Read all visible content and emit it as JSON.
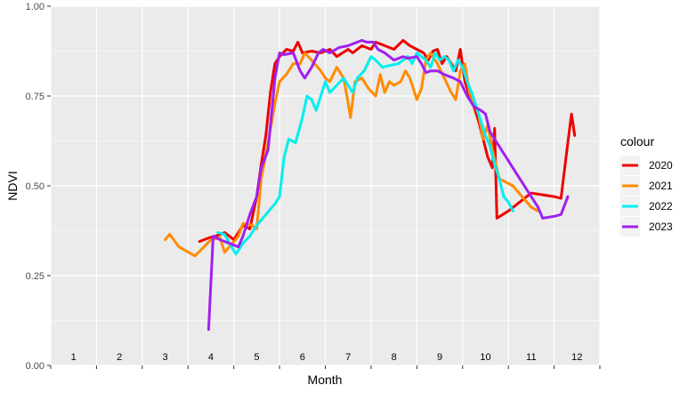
{
  "chart_data": {
    "type": "line",
    "title": "",
    "xlabel": "Month",
    "ylabel": "NDVI",
    "xlim": [
      0.5,
      12.5
    ],
    "ylim": [
      0,
      1
    ],
    "y_ticks": [
      0,
      0.25,
      0.5,
      0.75,
      1
    ],
    "y_tick_labels": [
      "0.00",
      "0.25",
      "0.50",
      "0.75",
      "1.00"
    ],
    "month_labels": [
      "1",
      "2",
      "3",
      "4",
      "5",
      "6",
      "7",
      "8",
      "9",
      "10",
      "11",
      "12"
    ],
    "month_label_positions": [
      1,
      2,
      3,
      4,
      5,
      6,
      7,
      8,
      9,
      10,
      11,
      12
    ],
    "month_label_y": 0.015,
    "x_ticks": [
      0.5,
      1.5,
      2.5,
      3.5,
      4.5,
      5.5,
      6.5,
      7.5,
      8.5,
      9.5,
      10.5,
      11.5,
      12.5
    ],
    "grid": true,
    "legend": {
      "title": "colour",
      "position": "right"
    },
    "series": [
      {
        "name": "2020",
        "color": "#ee0000",
        "points": [
          [
            3.75,
            0.345
          ],
          [
            3.95,
            0.355
          ],
          [
            4.1,
            0.36
          ],
          [
            4.3,
            0.37
          ],
          [
            4.5,
            0.35
          ],
          [
            4.7,
            0.39
          ],
          [
            4.85,
            0.38
          ],
          [
            5.0,
            0.47
          ],
          [
            5.1,
            0.56
          ],
          [
            5.2,
            0.64
          ],
          [
            5.3,
            0.76
          ],
          [
            5.4,
            0.84
          ],
          [
            5.5,
            0.86
          ],
          [
            5.65,
            0.88
          ],
          [
            5.8,
            0.875
          ],
          [
            5.9,
            0.9
          ],
          [
            6.0,
            0.87
          ],
          [
            6.2,
            0.875
          ],
          [
            6.4,
            0.87
          ],
          [
            6.6,
            0.88
          ],
          [
            6.75,
            0.86
          ],
          [
            7.0,
            0.88
          ],
          [
            7.1,
            0.87
          ],
          [
            7.3,
            0.89
          ],
          [
            7.5,
            0.88
          ],
          [
            7.6,
            0.9
          ],
          [
            7.8,
            0.89
          ],
          [
            8.0,
            0.88
          ],
          [
            8.2,
            0.905
          ],
          [
            8.35,
            0.89
          ],
          [
            8.5,
            0.88
          ],
          [
            8.65,
            0.87
          ],
          [
            8.75,
            0.85
          ],
          [
            8.85,
            0.875
          ],
          [
            8.95,
            0.88
          ],
          [
            9.05,
            0.84
          ],
          [
            9.15,
            0.86
          ],
          [
            9.25,
            0.84
          ],
          [
            9.35,
            0.82
          ],
          [
            9.45,
            0.88
          ],
          [
            9.55,
            0.79
          ],
          [
            9.65,
            0.75
          ],
          [
            9.75,
            0.72
          ],
          [
            9.85,
            0.68
          ],
          [
            9.95,
            0.63
          ],
          [
            10.05,
            0.58
          ],
          [
            10.15,
            0.55
          ],
          [
            10.2,
            0.66
          ],
          [
            10.25,
            0.41
          ],
          [
            10.5,
            0.43
          ],
          [
            10.8,
            0.46
          ],
          [
            11.0,
            0.48
          ],
          [
            11.5,
            0.47
          ],
          [
            11.65,
            0.465
          ],
          [
            11.8,
            0.62
          ],
          [
            11.88,
            0.7
          ],
          [
            11.95,
            0.64
          ]
        ]
      },
      {
        "name": "2021",
        "color": "#ff8c00",
        "points": [
          [
            3.0,
            0.35
          ],
          [
            3.1,
            0.365
          ],
          [
            3.3,
            0.33
          ],
          [
            3.65,
            0.305
          ],
          [
            3.85,
            0.33
          ],
          [
            4.0,
            0.35
          ],
          [
            4.2,
            0.355
          ],
          [
            4.3,
            0.315
          ],
          [
            4.5,
            0.345
          ],
          [
            4.6,
            0.36
          ],
          [
            4.7,
            0.395
          ],
          [
            4.9,
            0.39
          ],
          [
            5.0,
            0.38
          ],
          [
            5.1,
            0.52
          ],
          [
            5.25,
            0.62
          ],
          [
            5.4,
            0.73
          ],
          [
            5.5,
            0.79
          ],
          [
            5.65,
            0.81
          ],
          [
            5.8,
            0.84
          ],
          [
            5.95,
            0.84
          ],
          [
            6.05,
            0.87
          ],
          [
            6.2,
            0.85
          ],
          [
            6.4,
            0.82
          ],
          [
            6.5,
            0.8
          ],
          [
            6.6,
            0.79
          ],
          [
            6.75,
            0.83
          ],
          [
            6.9,
            0.8
          ],
          [
            7.0,
            0.73
          ],
          [
            7.05,
            0.69
          ],
          [
            7.15,
            0.79
          ],
          [
            7.3,
            0.8
          ],
          [
            7.45,
            0.77
          ],
          [
            7.6,
            0.75
          ],
          [
            7.7,
            0.81
          ],
          [
            7.8,
            0.76
          ],
          [
            7.9,
            0.79
          ],
          [
            8.0,
            0.78
          ],
          [
            8.15,
            0.79
          ],
          [
            8.25,
            0.82
          ],
          [
            8.35,
            0.8
          ],
          [
            8.5,
            0.74
          ],
          [
            8.6,
            0.77
          ],
          [
            8.7,
            0.85
          ],
          [
            8.8,
            0.87
          ],
          [
            8.95,
            0.84
          ],
          [
            9.1,
            0.8
          ],
          [
            9.25,
            0.76
          ],
          [
            9.35,
            0.74
          ],
          [
            9.45,
            0.82
          ],
          [
            9.55,
            0.84
          ],
          [
            9.65,
            0.76
          ],
          [
            9.75,
            0.73
          ],
          [
            9.85,
            0.7
          ],
          [
            9.95,
            0.63
          ],
          [
            10.05,
            0.67
          ],
          [
            10.15,
            0.6
          ],
          [
            10.3,
            0.52
          ],
          [
            10.6,
            0.5
          ],
          [
            10.8,
            0.47
          ],
          [
            11.0,
            0.44
          ],
          [
            11.15,
            0.43
          ]
        ]
      },
      {
        "name": "2022",
        "color": "#00eeee",
        "points": [
          [
            4.15,
            0.37
          ],
          [
            4.3,
            0.365
          ],
          [
            4.45,
            0.33
          ],
          [
            4.55,
            0.31
          ],
          [
            4.7,
            0.34
          ],
          [
            4.85,
            0.36
          ],
          [
            5.0,
            0.39
          ],
          [
            5.2,
            0.42
          ],
          [
            5.4,
            0.45
          ],
          [
            5.5,
            0.47
          ],
          [
            5.6,
            0.58
          ],
          [
            5.7,
            0.63
          ],
          [
            5.85,
            0.62
          ],
          [
            6.0,
            0.69
          ],
          [
            6.1,
            0.75
          ],
          [
            6.2,
            0.74
          ],
          [
            6.3,
            0.71
          ],
          [
            6.4,
            0.75
          ],
          [
            6.5,
            0.79
          ],
          [
            6.6,
            0.76
          ],
          [
            6.75,
            0.78
          ],
          [
            6.9,
            0.8
          ],
          [
            7.0,
            0.78
          ],
          [
            7.1,
            0.76
          ],
          [
            7.2,
            0.8
          ],
          [
            7.35,
            0.82
          ],
          [
            7.5,
            0.86
          ],
          [
            7.6,
            0.85
          ],
          [
            7.75,
            0.83
          ],
          [
            7.9,
            0.835
          ],
          [
            8.1,
            0.84
          ],
          [
            8.3,
            0.86
          ],
          [
            8.4,
            0.84
          ],
          [
            8.5,
            0.87
          ],
          [
            8.6,
            0.86
          ],
          [
            8.7,
            0.85
          ],
          [
            8.8,
            0.83
          ],
          [
            8.9,
            0.87
          ],
          [
            9.0,
            0.85
          ],
          [
            9.1,
            0.86
          ],
          [
            9.2,
            0.85
          ],
          [
            9.3,
            0.82
          ],
          [
            9.4,
            0.85
          ],
          [
            9.5,
            0.83
          ],
          [
            9.6,
            0.79
          ],
          [
            9.7,
            0.76
          ],
          [
            9.8,
            0.72
          ],
          [
            9.9,
            0.68
          ],
          [
            10.0,
            0.64
          ],
          [
            10.1,
            0.61
          ],
          [
            10.2,
            0.56
          ],
          [
            10.3,
            0.52
          ],
          [
            10.4,
            0.47
          ],
          [
            10.5,
            0.455
          ],
          [
            10.6,
            0.43
          ]
        ]
      },
      {
        "name": "2023",
        "color": "#a020f0",
        "points": [
          [
            3.95,
            0.1
          ],
          [
            4.05,
            0.36
          ],
          [
            4.2,
            0.35
          ],
          [
            4.4,
            0.34
          ],
          [
            4.6,
            0.33
          ],
          [
            4.7,
            0.36
          ],
          [
            4.85,
            0.42
          ],
          [
            5.0,
            0.47
          ],
          [
            5.1,
            0.55
          ],
          [
            5.25,
            0.6
          ],
          [
            5.4,
            0.8
          ],
          [
            5.5,
            0.87
          ],
          [
            5.6,
            0.865
          ],
          [
            5.8,
            0.87
          ],
          [
            5.95,
            0.82
          ],
          [
            6.05,
            0.8
          ],
          [
            6.2,
            0.83
          ],
          [
            6.35,
            0.87
          ],
          [
            6.45,
            0.88
          ],
          [
            6.6,
            0.87
          ],
          [
            6.8,
            0.885
          ],
          [
            7.0,
            0.89
          ],
          [
            7.2,
            0.9
          ],
          [
            7.3,
            0.905
          ],
          [
            7.4,
            0.9
          ],
          [
            7.55,
            0.9
          ],
          [
            7.65,
            0.88
          ],
          [
            7.8,
            0.87
          ],
          [
            8.0,
            0.85
          ],
          [
            8.2,
            0.86
          ],
          [
            8.3,
            0.855
          ],
          [
            8.5,
            0.86
          ],
          [
            8.6,
            0.84
          ],
          [
            8.7,
            0.815
          ],
          [
            8.8,
            0.82
          ],
          [
            8.95,
            0.82
          ],
          [
            9.1,
            0.81
          ],
          [
            9.3,
            0.8
          ],
          [
            9.45,
            0.79
          ],
          [
            9.6,
            0.75
          ],
          [
            9.75,
            0.72
          ],
          [
            9.9,
            0.71
          ],
          [
            10.0,
            0.7
          ],
          [
            10.1,
            0.65
          ],
          [
            10.25,
            0.62
          ],
          [
            10.45,
            0.58
          ],
          [
            10.7,
            0.53
          ],
          [
            10.95,
            0.48
          ],
          [
            11.15,
            0.44
          ],
          [
            11.25,
            0.41
          ],
          [
            11.5,
            0.415
          ],
          [
            11.65,
            0.42
          ],
          [
            11.8,
            0.47
          ]
        ]
      }
    ]
  }
}
